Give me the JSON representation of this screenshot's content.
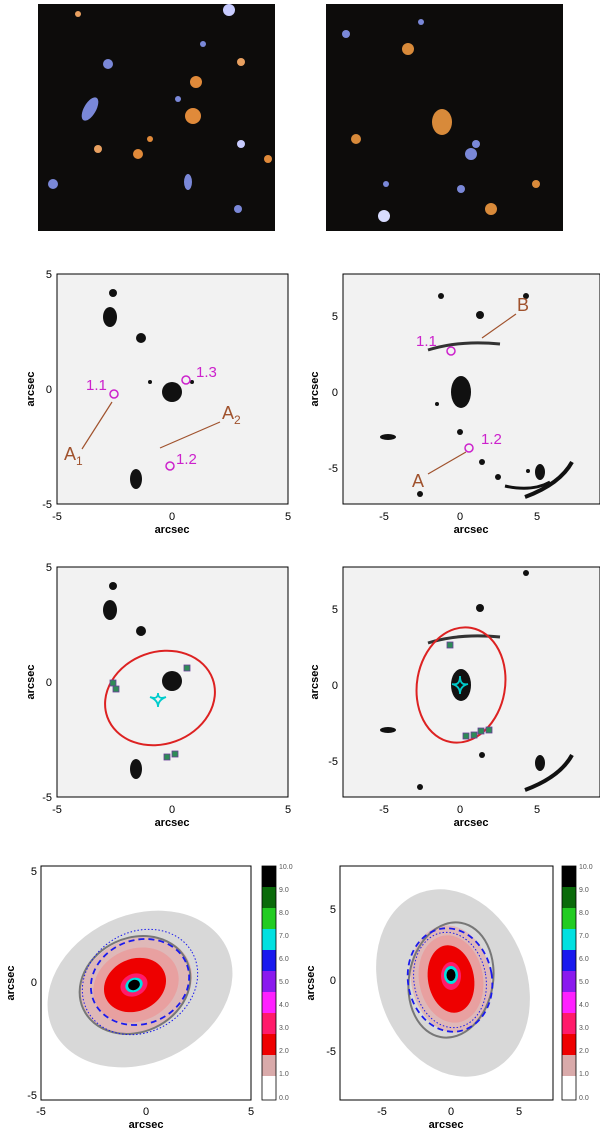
{
  "axes": {
    "xlabel": "arcsec",
    "ylabel": "arcsec",
    "left_ticks": [
      "-5",
      "0",
      "5"
    ],
    "right_ticks": [
      "-5",
      "0",
      "5"
    ]
  },
  "row2": {
    "left": {
      "images": [
        "1.1",
        "1.2",
        "1.3"
      ],
      "arc_A1": "A",
      "arc_A1_sub": "1",
      "arc_A2": "A",
      "arc_A2_sub": "2"
    },
    "right": {
      "images": [
        "1.1",
        "1.2"
      ],
      "arc_A": "A",
      "arc_B": "B"
    }
  },
  "colorbar": {
    "labels": [
      "10.0",
      "9.0",
      "8.0",
      "7.0",
      "6.0",
      "5.0",
      "4.0",
      "3.0",
      "2.0",
      "1.0",
      "0.0"
    ],
    "colors": [
      "#000000",
      "#0a6a0a",
      "#22cc22",
      "#00e0e0",
      "#1a1aee",
      "#8a1aee",
      "#ff20ff",
      "#ff1a6a",
      "#ee0000",
      "#d9aaaa",
      "#d8d8d8",
      "#ffffff"
    ]
  },
  "colors": {
    "magenta": "#cc22cc",
    "brown": "#a0522d",
    "critical_curve": "#dd2222",
    "caustic": "#00cccc",
    "image_marker": "#2e8b57"
  }
}
